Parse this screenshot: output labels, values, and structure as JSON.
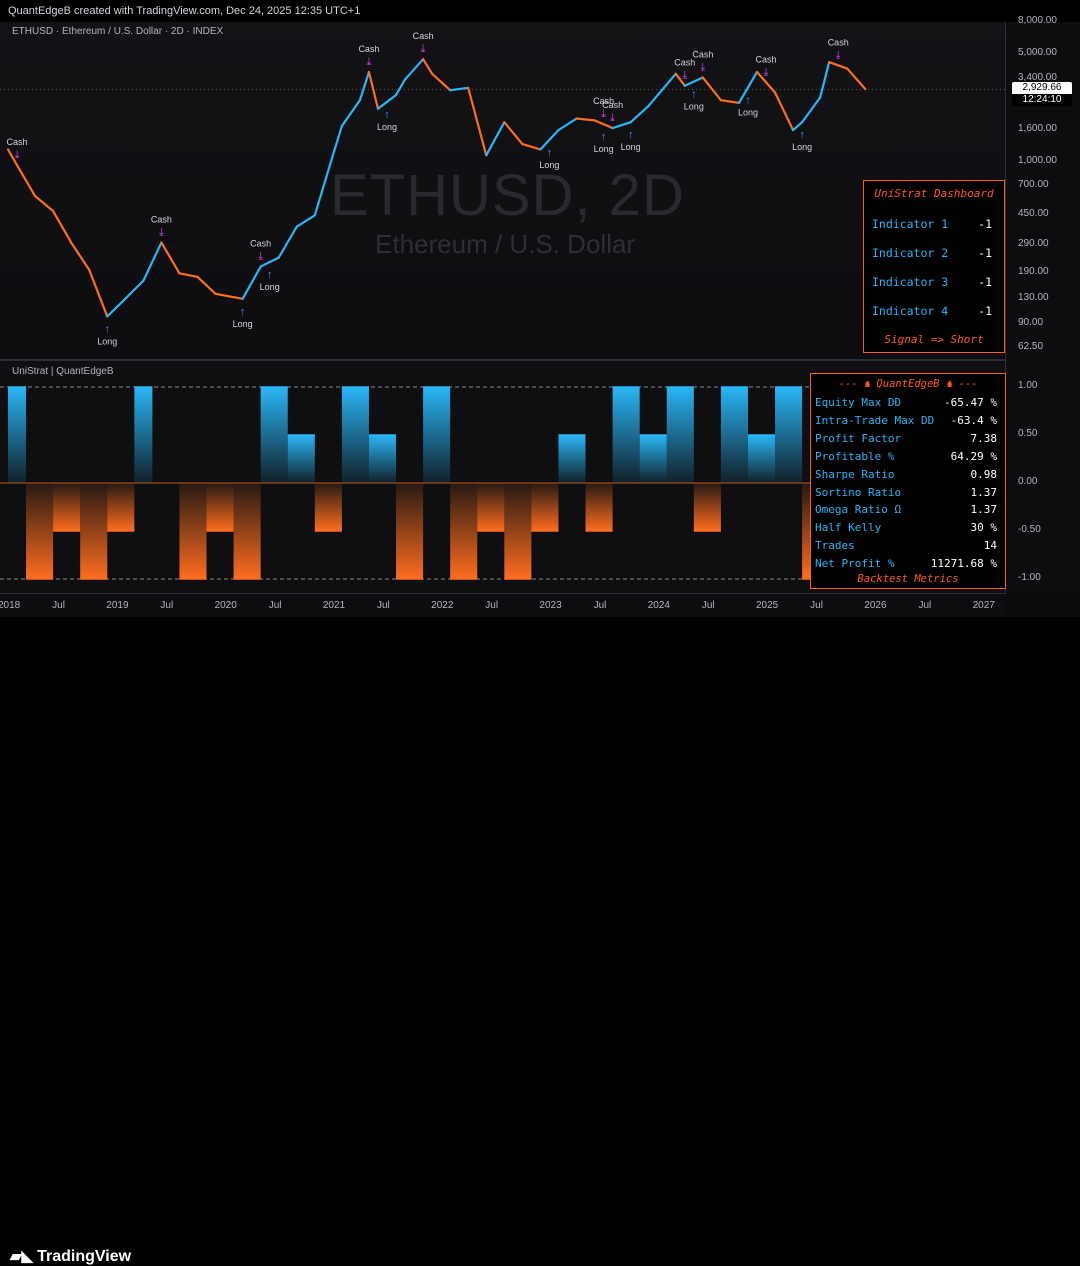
{
  "header": {
    "created_by": "QuantEdgeB created with TradingView.com, Dec 24, 2025 12:35 UTC+1"
  },
  "symbol_line": "ETHUSD · Ethereum / U.S. Dollar · 2D · INDEX",
  "watermark": {
    "symbol": "ETHUSD, 2D",
    "name": "Ethereum / U.S. Dollar"
  },
  "indicator_title": "UniStrat | QuantEdgeB",
  "price_label": {
    "price": "2,929.66",
    "countdown": "12:24:10"
  },
  "dashboard": {
    "title": "UniStrat Dashboard",
    "rows": [
      {
        "label": "Indicator 1",
        "value": "-1"
      },
      {
        "label": "Indicator 2",
        "value": "-1"
      },
      {
        "label": "Indicator 3",
        "value": "-1"
      },
      {
        "label": "Indicator 4",
        "value": "-1"
      }
    ],
    "signal": "Signal => Short"
  },
  "metrics": {
    "title": "---  ♞ QuantEdgeB ♞  ---",
    "rows": [
      {
        "label": "Equity Max DD",
        "value": "-65.47 %"
      },
      {
        "label": "Intra-Trade Max DD",
        "value": "-63.4 %"
      },
      {
        "label": "Profit Factor",
        "value": "7.38"
      },
      {
        "label": "Profitable %",
        "value": "64.29 %"
      },
      {
        "label": "Sharpe Ratio",
        "value": "0.98"
      },
      {
        "label": "Sortino Ratio",
        "value": "1.37"
      },
      {
        "label": "Omega Ratio Ω",
        "value": "1.37"
      },
      {
        "label": "Half Kelly",
        "value": "30 %"
      },
      {
        "label": "Trades",
        "value": "14"
      },
      {
        "label": "Net Profit %",
        "value": "11271.68 %"
      }
    ],
    "footer": "Backtest Metrics"
  },
  "footer": {
    "brand": "TradingView"
  },
  "colors": {
    "long": "#29b6f6",
    "short": "#ff6d1f",
    "neutral": "#9e9e9e",
    "cash_marker": "#e040fb",
    "long_marker": "#448aff",
    "accent": "#ff5a1f"
  },
  "chart_data": [
    {
      "type": "line",
      "scale": "log",
      "y_ticks": [
        "8,000.00",
        "5,000.00",
        "3,400.00",
        "1,600.00",
        "1,000.00",
        "700.00",
        "450.00",
        "290.00",
        "190.00",
        "130.00",
        "90.00",
        "62.50"
      ],
      "x_ticks": [
        "2018",
        "Jul",
        "2019",
        "Jul",
        "2020",
        "Jul",
        "2021",
        "Jul",
        "2022",
        "Jul",
        "2023",
        "Jul",
        "2024",
        "Jul",
        "2025",
        "Jul",
        "2026",
        "Jul",
        "2027"
      ],
      "x": [
        "2018-01",
        "2018-02",
        "2018-04",
        "2018-06",
        "2018-08",
        "2018-10",
        "2018-12",
        "2019-02",
        "2019-04",
        "2019-06",
        "2019-08",
        "2019-10",
        "2019-12",
        "2020-03",
        "2020-05",
        "2020-07",
        "2020-09",
        "2020-11",
        "2021-01",
        "2021-02",
        "2021-04",
        "2021-05",
        "2021-06",
        "2021-08",
        "2021-09",
        "2021-11",
        "2021-12",
        "2022-02",
        "2022-04",
        "2022-06",
        "2022-08",
        "2022-10",
        "2022-12",
        "2023-02",
        "2023-04",
        "2023-06",
        "2023-08",
        "2023-10",
        "2023-12",
        "2024-03",
        "2024-04",
        "2024-06",
        "2024-08",
        "2024-10",
        "2024-12",
        "2025-02",
        "2025-04",
        "2025-05",
        "2025-07",
        "2025-08",
        "2025-10",
        "2025-12"
      ],
      "y": [
        1200,
        950,
        600,
        480,
        300,
        200,
        100,
        130,
        170,
        300,
        190,
        180,
        140,
        130,
        210,
        240,
        380,
        450,
        1100,
        1700,
        2500,
        3800,
        2200,
        2700,
        3400,
        4600,
        3700,
        2900,
        3000,
        1100,
        1800,
        1300,
        1200,
        1600,
        1900,
        1850,
        1650,
        1800,
        2300,
        3700,
        3100,
        3500,
        2500,
        2400,
        3800,
        2800,
        1600,
        1800,
        2600,
        4400,
        4000,
        2950
      ],
      "signals": [
        {
          "label": "Cash",
          "type": "cash",
          "x": "2018-02"
        },
        {
          "label": "Long",
          "type": "long",
          "x": "2018-12"
        },
        {
          "label": "Cash",
          "type": "cash",
          "x": "2019-06"
        },
        {
          "label": "Long",
          "type": "long",
          "x": "2020-03"
        },
        {
          "label": "Cash",
          "type": "cash",
          "x": "2020-05"
        },
        {
          "label": "Long",
          "type": "long",
          "x": "2020-06"
        },
        {
          "label": "Cash",
          "type": "cash",
          "x": "2021-05"
        },
        {
          "label": "Long",
          "type": "long",
          "x": "2021-07"
        },
        {
          "label": "Cash",
          "type": "cash",
          "x": "2021-11"
        },
        {
          "label": "Long",
          "type": "long",
          "x": "2023-01"
        },
        {
          "label": "Cash",
          "type": "cash",
          "x": "2023-07"
        },
        {
          "label": "Long",
          "type": "long",
          "x": "2023-07"
        },
        {
          "label": "Cash",
          "type": "cash",
          "x": "2023-08"
        },
        {
          "label": "Long",
          "type": "long",
          "x": "2023-10"
        },
        {
          "label": "Cash",
          "type": "cash",
          "x": "2024-04"
        },
        {
          "label": "Long",
          "type": "long",
          "x": "2024-05"
        },
        {
          "label": "Cash",
          "type": "cash",
          "x": "2024-06"
        },
        {
          "label": "Long",
          "type": "long",
          "x": "2024-11"
        },
        {
          "label": "Cash",
          "type": "cash",
          "x": "2025-01"
        },
        {
          "label": "Long",
          "type": "long",
          "x": "2025-05"
        },
        {
          "label": "Cash",
          "type": "cash",
          "x": "2025-09"
        }
      ]
    },
    {
      "type": "area",
      "y_ticks": [
        "1.00",
        "0.50",
        "0.00",
        "-0.50",
        "-1.00"
      ],
      "ylim": [
        -1,
        1
      ],
      "x": [
        "2018-01",
        "2018-03",
        "2018-06",
        "2018-09",
        "2018-12",
        "2019-03",
        "2019-05",
        "2019-08",
        "2019-11",
        "2020-02",
        "2020-05",
        "2020-08",
        "2020-11",
        "2021-02",
        "2021-05",
        "2021-08",
        "2021-11",
        "2022-02",
        "2022-05",
        "2022-08",
        "2022-11",
        "2023-02",
        "2023-05",
        "2023-08",
        "2023-11",
        "2024-02",
        "2024-05",
        "2024-08",
        "2024-11",
        "2025-02",
        "2025-05",
        "2025-08",
        "2025-11",
        "2025-12"
      ],
      "y": [
        1,
        -1,
        -0.5,
        -1,
        -0.5,
        1,
        0,
        -1,
        -0.5,
        -1,
        1,
        0.5,
        -0.5,
        1,
        0.5,
        -1,
        1,
        -1,
        -0.5,
        -1,
        -0.5,
        0.5,
        -0.5,
        1,
        0.5,
        1,
        -0.5,
        1,
        0.5,
        1,
        -1,
        0.5,
        1,
        -1
      ]
    }
  ]
}
